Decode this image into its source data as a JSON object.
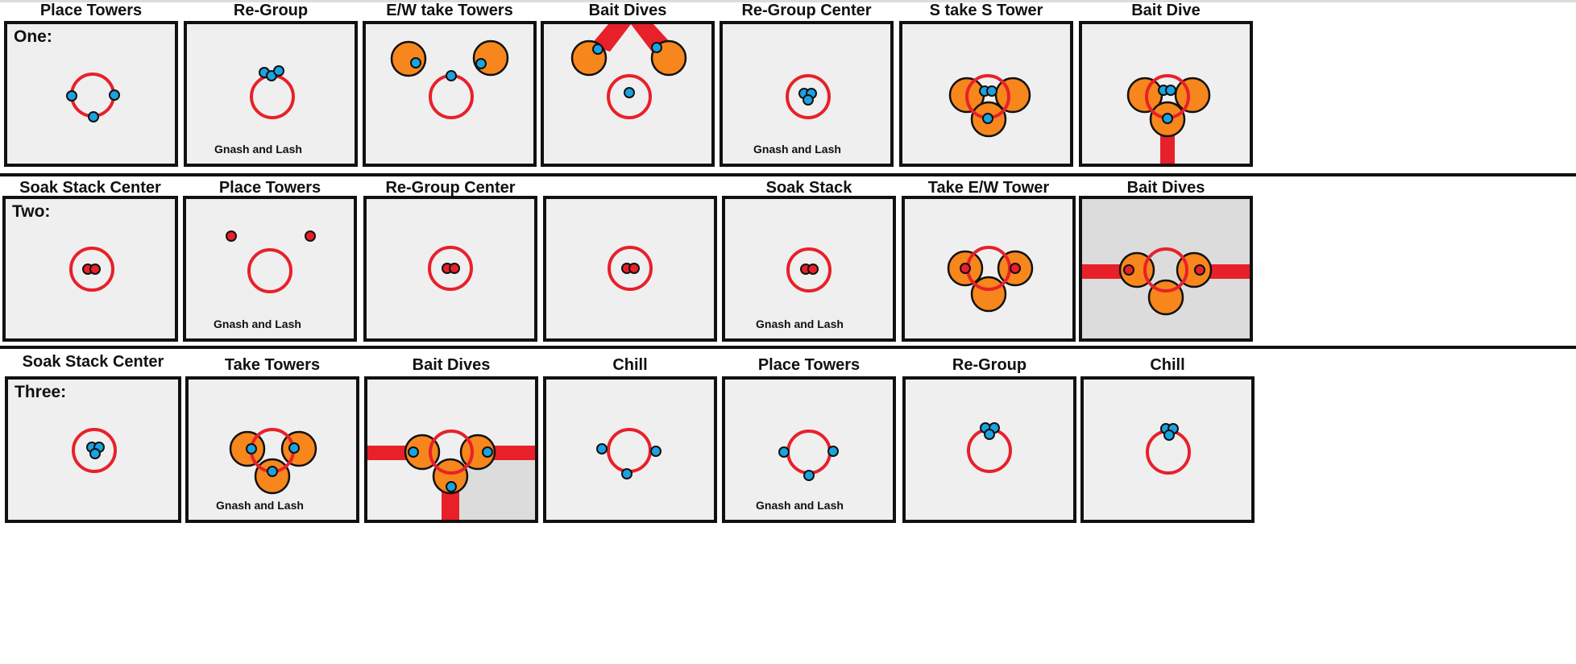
{
  "rows": [
    {
      "label": "One:",
      "titles": [
        "Place Towers",
        "Re-Group",
        "E/W take Towers",
        "Bait Dives",
        "Re-Group Center",
        "S take S Tower",
        "Bait Dive"
      ],
      "notes": [
        "",
        "Gnash and Lash",
        "",
        "",
        "Gnash and Lash",
        "",
        ""
      ]
    },
    {
      "label": "Two:",
      "titles": [
        "Soak Stack Center",
        "Place Towers",
        "Re-Group Center",
        "",
        "Soak Stack",
        "Take E/W Tower",
        "Bait Dives"
      ],
      "notes": [
        "",
        "Gnash and Lash",
        "",
        "",
        "Gnash and Lash",
        "",
        ""
      ]
    },
    {
      "label": "Three:",
      "titles": [
        "Soak Stack Center",
        "Take  Towers",
        "Bait Dives",
        "Chill",
        "Place Towers",
        "Re-Group",
        "Chill"
      ],
      "notes": [
        "",
        "Gnash and Lash",
        "",
        "",
        "Gnash and Lash",
        "",
        ""
      ]
    }
  ],
  "colors": {
    "ring": "#e8202a",
    "tower": "#f7861d",
    "player": "#1ba3e0",
    "enemy": "#e8202a",
    "outline": "#111111",
    "panel_bg": "#efefef",
    "panel_shade": "#dcdcdc"
  }
}
